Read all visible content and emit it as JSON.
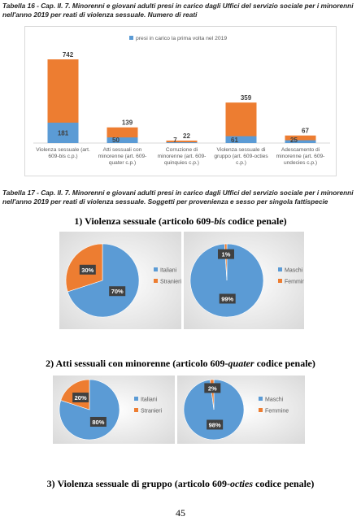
{
  "captions": [
    "Tabella 16 - Cap. II. 7. Minorenni e giovani adulti presi in carico dagli Uffici del servizio sociale per i minorenni nell'anno 2019 per reati di violenza sessuale. Numero di reati",
    "Tabella 17 - Cap. II. 7. Minorenni e giovani adulti presi in carico dagli Uffici del servizio sociale per i minorenni nell'anno 2019 per reati di violenza sessuale. Soggetti per provenienza e sesso per singola fattispecie"
  ],
  "sections": [
    {
      "parts": [
        "1)  Violenza sessuale (articolo 609-",
        "bis",
        " codice penale)"
      ]
    },
    {
      "parts": [
        "2)  Atti sessuali con minorenne (articolo 609-",
        "quater",
        " codice penale)"
      ]
    },
    {
      "parts": [
        "3)  Violenza sessuale di gruppo (articolo 609-",
        "octies",
        " codice penale)"
      ]
    }
  ],
  "page_number": "45",
  "chart_data": [
    {
      "type": "bar",
      "overlap": true,
      "ylim": [
        0,
        800
      ],
      "categories": [
        "Violenza sessuale (art. 609-bis c.p.)",
        "Atti sessuali con minorenne (art. 609-quater c.p.)",
        "Corruzione di minorenne (art. 609-quinquies c.p.)",
        "Violenza sessuale di gruppo (art. 609-octies c.p.)",
        "Adescamento di minorenne (art. 609-undecies c.p.)"
      ],
      "series": [
        {
          "color": "#ed7d31",
          "values": [
            742,
            139,
            22,
            359,
            67
          ]
        },
        {
          "name": "presi in carico la prima volta nel 2019",
          "color": "#5b9bd5",
          "values": [
            181,
            50,
            7,
            61,
            25
          ]
        }
      ]
    },
    {
      "type": "pie",
      "categories": [
        "Italiani",
        "Stranieri"
      ],
      "values": [
        70,
        30
      ],
      "value_labels": [
        "70%",
        "30%"
      ],
      "colors": [
        "#5b9bd5",
        "#ed7d31"
      ]
    },
    {
      "type": "pie",
      "categories": [
        "Maschi",
        "Femmine"
      ],
      "values": [
        99,
        1
      ],
      "value_labels": [
        "99%",
        "1%"
      ],
      "colors": [
        "#5b9bd5",
        "#ed7d31"
      ]
    },
    {
      "type": "pie",
      "categories": [
        "Italiani",
        "Stranieri"
      ],
      "values": [
        80,
        20
      ],
      "value_labels": [
        "80%",
        "20%"
      ],
      "colors": [
        "#5b9bd5",
        "#ed7d31"
      ]
    },
    {
      "type": "pie",
      "categories": [
        "Maschi",
        "Femmine"
      ],
      "values": [
        98,
        2
      ],
      "value_labels": [
        "98%",
        "2%"
      ],
      "colors": [
        "#5b9bd5",
        "#ed7d31"
      ]
    }
  ]
}
